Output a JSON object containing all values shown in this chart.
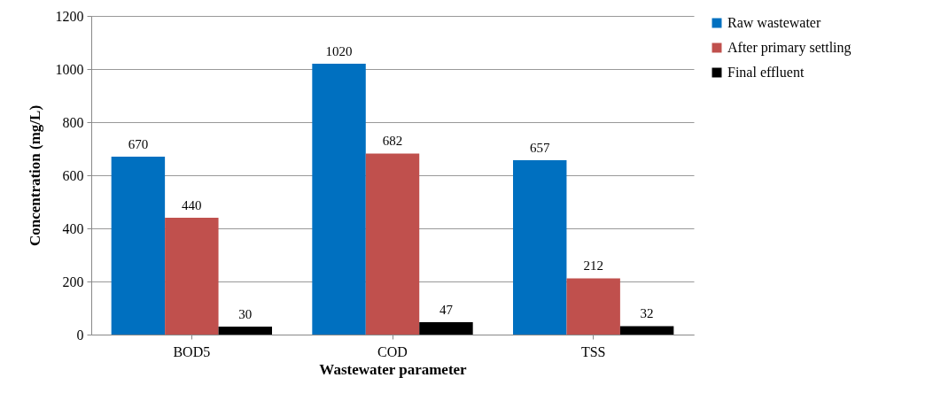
{
  "chart_data": {
    "type": "bar",
    "xlabel": "Wastewater parameter",
    "ylabel": "Concentration (mg/L)",
    "categories": [
      "BOD5",
      "COD",
      "TSS"
    ],
    "series": [
      {
        "name": "Raw wastewater",
        "color": "#0070c0",
        "values": [
          670,
          1020,
          657
        ]
      },
      {
        "name": "After primary settling",
        "color": "#c0504d",
        "values": [
          440,
          682,
          212
        ]
      },
      {
        "name": "Final effluent",
        "color": "#000000",
        "values": [
          30,
          47,
          32
        ]
      }
    ],
    "ylim": [
      0,
      1200
    ],
    "yticks": [
      0,
      200,
      400,
      600,
      800,
      1000,
      1200
    ],
    "grid": "y",
    "legend": "right",
    "data_labels": true
  }
}
